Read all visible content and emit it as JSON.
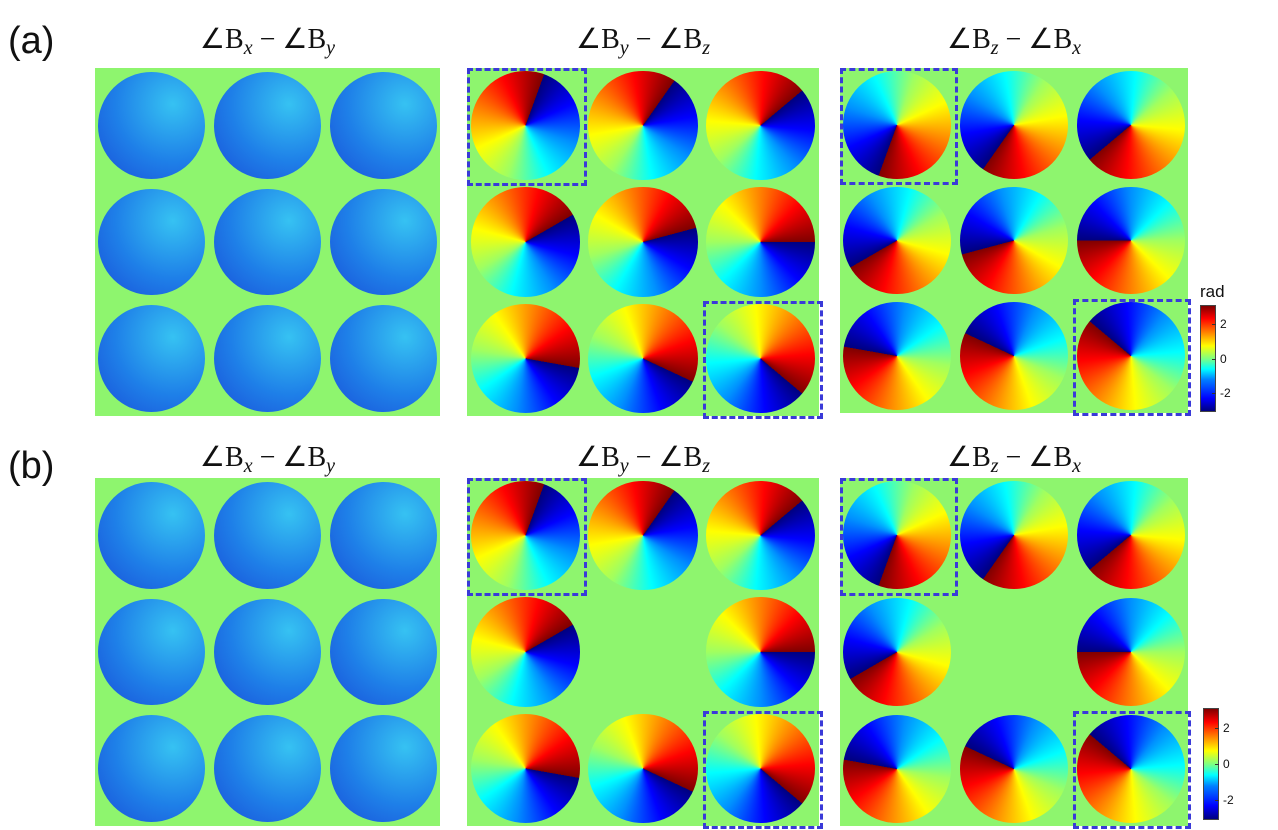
{
  "panels": [
    {
      "label": "(a)",
      "titles": [
        [
          "∠B",
          "x",
          " − ∠B",
          "y"
        ],
        [
          "∠B",
          "y",
          " − ∠B",
          "z"
        ],
        [
          "∠B",
          "z",
          " − ∠B",
          "x"
        ]
      ],
      "colorbar": {
        "title": "rad",
        "clim": [
          -3.14,
          3.14
        ],
        "ticks": [
          2,
          0,
          -2
        ]
      }
    },
    {
      "label": "(b)",
      "titles": [
        [
          "∠B",
          "x",
          " − ∠B",
          "y"
        ],
        [
          "∠B",
          "y",
          " − ∠B",
          "z"
        ],
        [
          "∠B",
          "z",
          " − ∠B",
          "x"
        ]
      ],
      "colorbar": {
        "clim": [
          -3.14,
          3.14
        ],
        "ticks": [
          2,
          0,
          -2
        ]
      }
    }
  ]
}
